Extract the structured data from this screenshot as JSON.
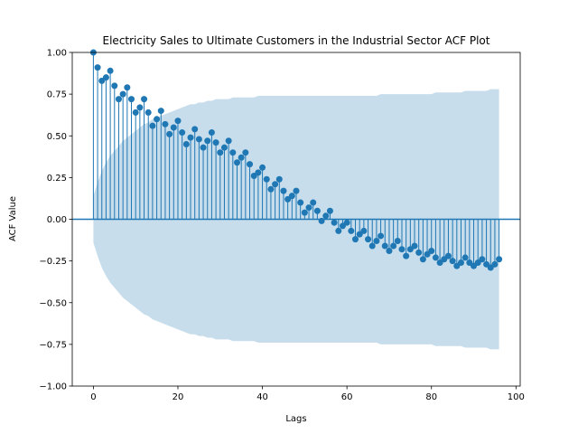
{
  "chart_data": {
    "type": "stem",
    "title": "Electricity Sales to Ultimate Customers in the Industrial Sector ACF Plot",
    "xlabel": "Lags",
    "ylabel": "ACF Value",
    "xlim": [
      -5,
      101
    ],
    "ylim": [
      -1.0,
      1.0
    ],
    "x_ticks": [
      0,
      20,
      40,
      60,
      80,
      100
    ],
    "y_ticks": [
      -1.0,
      -0.75,
      -0.5,
      -0.25,
      0.0,
      0.25,
      0.5,
      0.75,
      1.0
    ],
    "x_tick_labels": [
      "0",
      "20",
      "40",
      "60",
      "80",
      "100"
    ],
    "y_tick_labels": [
      "−1.00",
      "−0.75",
      "−0.50",
      "−0.25",
      "0.00",
      "0.25",
      "0.50",
      "0.75",
      "1.00"
    ],
    "lags": [
      0,
      1,
      2,
      3,
      4,
      5,
      6,
      7,
      8,
      9,
      10,
      11,
      12,
      13,
      14,
      15,
      16,
      17,
      18,
      19,
      20,
      21,
      22,
      23,
      24,
      25,
      26,
      27,
      28,
      29,
      30,
      31,
      32,
      33,
      34,
      35,
      36,
      37,
      38,
      39,
      40,
      41,
      42,
      43,
      44,
      45,
      46,
      47,
      48,
      49,
      50,
      51,
      52,
      53,
      54,
      55,
      56,
      57,
      58,
      59,
      60,
      61,
      62,
      63,
      64,
      65,
      66,
      67,
      68,
      69,
      70,
      71,
      72,
      73,
      74,
      75,
      76,
      77,
      78,
      79,
      80,
      81,
      82,
      83,
      84,
      85,
      86,
      87,
      88,
      89,
      90,
      91,
      92,
      93,
      94,
      95,
      96
    ],
    "acf": [
      1.0,
      0.91,
      0.83,
      0.85,
      0.89,
      0.8,
      0.72,
      0.75,
      0.79,
      0.72,
      0.64,
      0.67,
      0.72,
      0.64,
      0.56,
      0.6,
      0.65,
      0.57,
      0.51,
      0.55,
      0.59,
      0.52,
      0.45,
      0.49,
      0.54,
      0.48,
      0.43,
      0.47,
      0.52,
      0.46,
      0.4,
      0.43,
      0.47,
      0.4,
      0.34,
      0.37,
      0.4,
      0.33,
      0.26,
      0.28,
      0.31,
      0.24,
      0.18,
      0.21,
      0.24,
      0.17,
      0.12,
      0.14,
      0.17,
      0.1,
      0.04,
      0.07,
      0.1,
      0.05,
      -0.01,
      0.02,
      0.05,
      -0.02,
      -0.07,
      -0.04,
      -0.02,
      -0.07,
      -0.12,
      -0.09,
      -0.07,
      -0.12,
      -0.16,
      -0.13,
      -0.1,
      -0.16,
      -0.19,
      -0.16,
      -0.13,
      -0.18,
      -0.22,
      -0.18,
      -0.16,
      -0.2,
      -0.24,
      -0.21,
      -0.19,
      -0.23,
      -0.26,
      -0.24,
      -0.22,
      -0.25,
      -0.28,
      -0.26,
      -0.23,
      -0.26,
      -0.28,
      -0.26,
      -0.24,
      -0.27,
      -0.29,
      -0.27,
      -0.24
    ],
    "confint_upper": [
      0.14,
      0.22,
      0.29,
      0.34,
      0.38,
      0.41,
      0.44,
      0.47,
      0.49,
      0.51,
      0.53,
      0.55,
      0.57,
      0.58,
      0.6,
      0.61,
      0.62,
      0.63,
      0.64,
      0.65,
      0.66,
      0.67,
      0.68,
      0.69,
      0.69,
      0.7,
      0.7,
      0.71,
      0.71,
      0.72,
      0.72,
      0.72,
      0.72,
      0.73,
      0.73,
      0.73,
      0.73,
      0.73,
      0.73,
      0.74,
      0.74,
      0.74,
      0.74,
      0.74,
      0.74,
      0.74,
      0.74,
      0.74,
      0.74,
      0.74,
      0.74,
      0.74,
      0.74,
      0.74,
      0.74,
      0.74,
      0.74,
      0.74,
      0.74,
      0.74,
      0.74,
      0.74,
      0.74,
      0.74,
      0.74,
      0.74,
      0.74,
      0.74,
      0.75,
      0.75,
      0.75,
      0.75,
      0.75,
      0.75,
      0.75,
      0.75,
      0.75,
      0.75,
      0.75,
      0.75,
      0.75,
      0.76,
      0.76,
      0.76,
      0.76,
      0.76,
      0.76,
      0.76,
      0.77,
      0.77,
      0.77,
      0.77,
      0.77,
      0.77,
      0.78,
      0.78,
      0.78
    ],
    "stem_color": "#1f77b4",
    "band_color": "#1f77b4",
    "band_opacity": 0.25,
    "grid": false,
    "legend": "none"
  }
}
